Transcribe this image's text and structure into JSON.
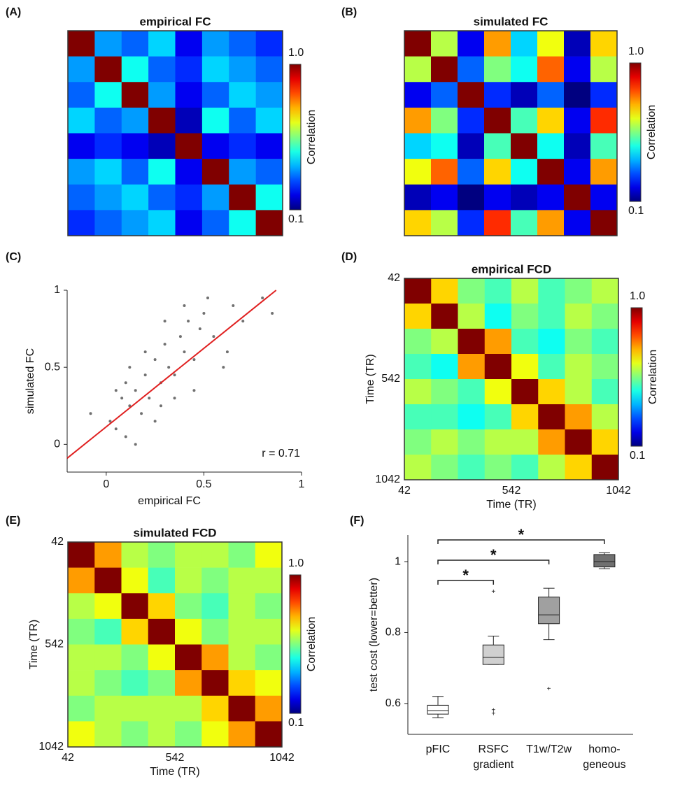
{
  "chart_data": [
    {
      "type": "heatmap",
      "panel": "(A)",
      "title": "empirical FC",
      "clim": [
        0.1,
        1
      ],
      "colorbar": {
        "label": "Correlation",
        "ticks": [
          {
            "value": 1,
            "label": "1.0"
          },
          {
            "value": 0.1,
            "label": "0.1"
          }
        ]
      },
      "matrix": [
        [
          1,
          0.35,
          0.3,
          0.4,
          0.2,
          0.35,
          0.3,
          0.25
        ],
        [
          0.35,
          1,
          0.45,
          0.3,
          0.25,
          0.4,
          0.35,
          0.3
        ],
        [
          0.3,
          0.45,
          1,
          0.35,
          0.2,
          0.3,
          0.4,
          0.35
        ],
        [
          0.4,
          0.3,
          0.35,
          1,
          0.15,
          0.45,
          0.3,
          0.4
        ],
        [
          0.2,
          0.25,
          0.2,
          0.15,
          1,
          0.2,
          0.25,
          0.2
        ],
        [
          0.35,
          0.4,
          0.3,
          0.45,
          0.2,
          1,
          0.35,
          0.3
        ],
        [
          0.3,
          0.35,
          0.4,
          0.3,
          0.25,
          0.35,
          1,
          0.45
        ],
        [
          0.25,
          0.3,
          0.35,
          0.4,
          0.2,
          0.3,
          0.45,
          1
        ]
      ]
    },
    {
      "type": "heatmap",
      "panel": "(B)",
      "title": "simulated FC",
      "clim": [
        0.1,
        1
      ],
      "colorbar": {
        "label": "Correlation",
        "ticks": [
          {
            "value": 1,
            "label": "1.0"
          },
          {
            "value": 0.1,
            "label": "0.1"
          }
        ]
      },
      "matrix": [
        [
          1,
          0.6,
          0.2,
          0.75,
          0.4,
          0.65,
          0.15,
          0.7
        ],
        [
          0.6,
          1,
          0.3,
          0.55,
          0.45,
          0.8,
          0.2,
          0.6
        ],
        [
          0.2,
          0.3,
          1,
          0.25,
          0.15,
          0.3,
          0.1,
          0.25
        ],
        [
          0.75,
          0.55,
          0.25,
          1,
          0.5,
          0.7,
          0.2,
          0.85
        ],
        [
          0.4,
          0.45,
          0.15,
          0.5,
          1,
          0.45,
          0.15,
          0.5
        ],
        [
          0.65,
          0.8,
          0.3,
          0.7,
          0.45,
          1,
          0.2,
          0.75
        ],
        [
          0.15,
          0.2,
          0.1,
          0.2,
          0.15,
          0.2,
          1,
          0.2
        ],
        [
          0.7,
          0.6,
          0.25,
          0.85,
          0.5,
          0.75,
          0.2,
          1
        ]
      ]
    },
    {
      "type": "scatter",
      "panel": "(C)",
      "color": "#707070",
      "xlabel": "empirical FC",
      "ylabel": "simulated FC",
      "annotation": "r = 0.71",
      "xlim": [
        -0.2,
        1
      ],
      "ylim": [
        -0.18,
        1
      ],
      "xticks": [
        0,
        0.5,
        1
      ],
      "yticks": [
        0,
        0.5,
        1
      ],
      "x": [
        0.02,
        0.05,
        0.08,
        0.1,
        0.12,
        0.15,
        0.18,
        0.2,
        0.22,
        0.25,
        0.28,
        0.3,
        0.32,
        0.35,
        0.38,
        0.4,
        0.42,
        0.45,
        0.48,
        0.5,
        0.55,
        0.6,
        0.65,
        0.7,
        0.8,
        0.85,
        0.1,
        0.15,
        0.2,
        0.25,
        0.3,
        0.35,
        0.4,
        0.05,
        0.12,
        0.28,
        0.45,
        0.52,
        0.62,
        -0.08
      ],
      "y": [
        0.15,
        0.1,
        0.3,
        0.05,
        0.25,
        0.35,
        0.2,
        0.45,
        0.3,
        0.55,
        0.4,
        0.65,
        0.5,
        0.45,
        0.7,
        0.6,
        0.8,
        0.55,
        0.75,
        0.85,
        0.7,
        0.5,
        0.9,
        0.8,
        0.95,
        0.85,
        0.4,
        0.0,
        0.6,
        0.15,
        0.8,
        0.3,
        0.9,
        0.35,
        0.5,
        0.25,
        0.35,
        0.95,
        0.6,
        0.2
      ],
      "fit": {
        "color": "#e02020",
        "x": [
          -0.2,
          0.87
        ],
        "y": [
          -0.09,
          1.0
        ]
      }
    },
    {
      "type": "heatmap",
      "panel": "(D)",
      "title": "empirical FCD",
      "clim": [
        0.1,
        1
      ],
      "xlabel": "Time (TR)",
      "ylabel": "Time (TR)",
      "xlim": [
        42,
        1042
      ],
      "ylim": [
        42,
        1042
      ],
      "xticks": [
        42,
        542,
        1042
      ],
      "yticks": [
        42,
        542,
        1042
      ],
      "colorbar": {
        "label": "Correlation",
        "ticks": [
          {
            "value": 1,
            "label": "1.0"
          },
          {
            "value": 0.1,
            "label": "0.1"
          }
        ]
      },
      "matrix": [
        [
          1,
          0.7,
          0.55,
          0.5,
          0.6,
          0.5,
          0.55,
          0.6
        ],
        [
          0.7,
          1,
          0.6,
          0.45,
          0.55,
          0.5,
          0.6,
          0.55
        ],
        [
          0.55,
          0.6,
          1,
          0.75,
          0.5,
          0.45,
          0.55,
          0.5
        ],
        [
          0.5,
          0.45,
          0.75,
          1,
          0.65,
          0.5,
          0.6,
          0.55
        ],
        [
          0.6,
          0.55,
          0.5,
          0.65,
          1,
          0.7,
          0.6,
          0.5
        ],
        [
          0.5,
          0.5,
          0.45,
          0.5,
          0.7,
          1,
          0.75,
          0.6
        ],
        [
          0.55,
          0.6,
          0.55,
          0.6,
          0.6,
          0.75,
          1,
          0.7
        ],
        [
          0.6,
          0.55,
          0.5,
          0.55,
          0.5,
          0.6,
          0.7,
          1
        ]
      ]
    },
    {
      "type": "heatmap",
      "panel": "(E)",
      "title": "simulated FCD",
      "clim": [
        0.1,
        1
      ],
      "xlabel": "Time (TR)",
      "ylabel": "Time (TR)",
      "xlim": [
        42,
        1042
      ],
      "ylim": [
        42,
        1042
      ],
      "xticks": [
        42,
        542,
        1042
      ],
      "yticks": [
        42,
        542,
        1042
      ],
      "colorbar": {
        "label": "Correlation",
        "ticks": [
          {
            "value": 1,
            "label": "1.0"
          },
          {
            "value": 0.1,
            "label": "0.1"
          }
        ]
      },
      "matrix": [
        [
          1,
          0.75,
          0.6,
          0.55,
          0.6,
          0.6,
          0.55,
          0.65
        ],
        [
          0.75,
          1,
          0.65,
          0.5,
          0.6,
          0.55,
          0.6,
          0.6
        ],
        [
          0.6,
          0.65,
          1,
          0.7,
          0.55,
          0.5,
          0.6,
          0.55
        ],
        [
          0.55,
          0.5,
          0.7,
          1,
          0.65,
          0.55,
          0.6,
          0.6
        ],
        [
          0.6,
          0.6,
          0.55,
          0.65,
          1,
          0.75,
          0.6,
          0.55
        ],
        [
          0.6,
          0.55,
          0.5,
          0.55,
          0.75,
          1,
          0.7,
          0.65
        ],
        [
          0.55,
          0.6,
          0.6,
          0.6,
          0.6,
          0.7,
          1,
          0.75
        ],
        [
          0.65,
          0.6,
          0.55,
          0.6,
          0.55,
          0.65,
          0.75,
          1
        ]
      ]
    },
    {
      "type": "box",
      "panel": "(F)",
      "ylabel": "test cost (lower=better)",
      "ylim": [
        0.513,
        1.075
      ],
      "yticks": [
        0.6,
        0.8,
        1
      ],
      "categories": [
        [
          "pFIC"
        ],
        [
          "RSFC",
          "gradient"
        ],
        [
          "T1w/T2w"
        ],
        [
          "homo-",
          "geneous"
        ]
      ],
      "colors": [
        "#ffffff",
        "#d0d0d0",
        "#a0a0a0",
        "#707070"
      ],
      "boxes": [
        {
          "whislo": 0.56,
          "q1": 0.57,
          "med": 0.58,
          "q3": 0.595,
          "whishi": 0.62,
          "fliers": []
        },
        {
          "whislo": 0.71,
          "q1": 0.71,
          "med": 0.73,
          "q3": 0.765,
          "whishi": 0.79,
          "fliers": [
            0.915,
            0.58,
            0.57
          ]
        },
        {
          "whislo": 0.78,
          "q1": 0.825,
          "med": 0.85,
          "q3": 0.9,
          "whishi": 0.925,
          "fliers": [
            0.64
          ]
        },
        {
          "whislo": 0.98,
          "q1": 0.985,
          "med": 1.0,
          "q3": 1.02,
          "whishi": 1.025,
          "fliers": []
        }
      ],
      "significance": [
        {
          "pair": [
            0,
            1
          ],
          "label": "*"
        },
        {
          "pair": [
            0,
            2
          ],
          "label": "*"
        },
        {
          "pair": [
            0,
            3
          ],
          "label": "*"
        }
      ]
    }
  ]
}
